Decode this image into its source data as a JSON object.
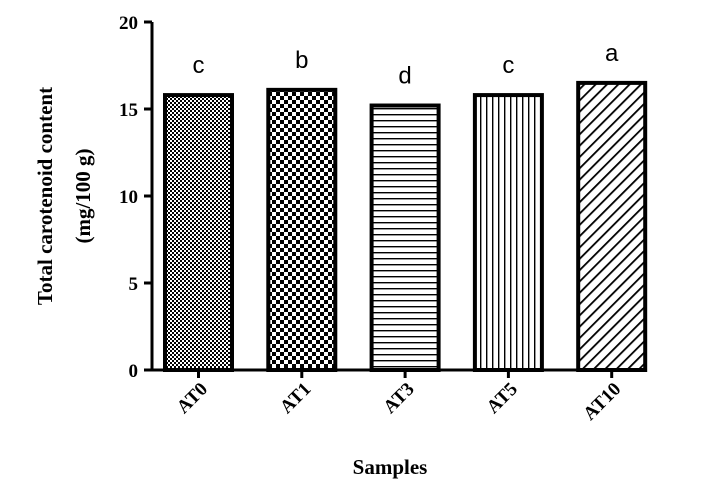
{
  "chart_data": {
    "type": "bar",
    "categories": [
      "AT0",
      "AT1",
      "AT3",
      "AT5",
      "AT10"
    ],
    "values": [
      15.8,
      16.1,
      15.2,
      15.8,
      16.5
    ],
    "significance_letters": [
      "c",
      "b",
      "d",
      "c",
      "a"
    ],
    "patterns": [
      "fine-checker",
      "checker",
      "horizontal-lines",
      "vertical-lines",
      "diagonal-lines"
    ],
    "xlabel": "Samples",
    "ylabel_lines": [
      "Total carotenoid content",
      "(mg/100 g)"
    ],
    "ylim": [
      0,
      20
    ],
    "yticks": [
      "0",
      "5",
      "10",
      "15",
      "20"
    ],
    "grid": false,
    "bar_fill": "#ffffff",
    "bar_stroke": "#000000"
  }
}
